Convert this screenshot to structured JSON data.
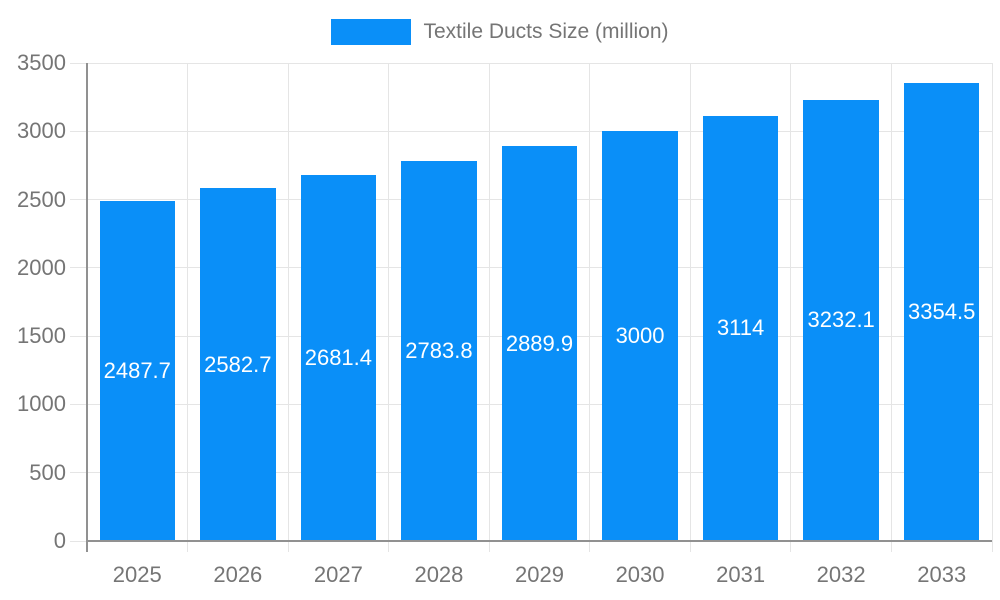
{
  "chart_data": {
    "type": "bar",
    "categories": [
      "2025",
      "2026",
      "2027",
      "2028",
      "2029",
      "2030",
      "2031",
      "2032",
      "2033"
    ],
    "series": [
      {
        "name": "Textile Ducts Size (million)",
        "values": [
          2487.7,
          2582.7,
          2681.4,
          2783.8,
          2889.9,
          3000,
          3114,
          3232.1,
          3354.5
        ]
      }
    ],
    "value_labels": [
      "2487.7",
      "2582.7",
      "2681.4",
      "2783.8",
      "2889.9",
      "3000",
      "3114",
      "3232.1",
      "3354.5"
    ],
    "y_tick_labels": [
      "0",
      "500",
      "1000",
      "1500",
      "2000",
      "2500",
      "3000",
      "3500"
    ],
    "ylim": [
      0,
      3500
    ],
    "ytick_step": 500,
    "xlabel": "",
    "ylabel": "",
    "grid": "on",
    "legend_position": "top",
    "colors": {
      "bar": "#0a8ff8",
      "grid": "#e5e5e5",
      "axis": "#919191",
      "tick_label": "#757575",
      "value_label": "#ffffff",
      "background": "#ffffff"
    }
  }
}
